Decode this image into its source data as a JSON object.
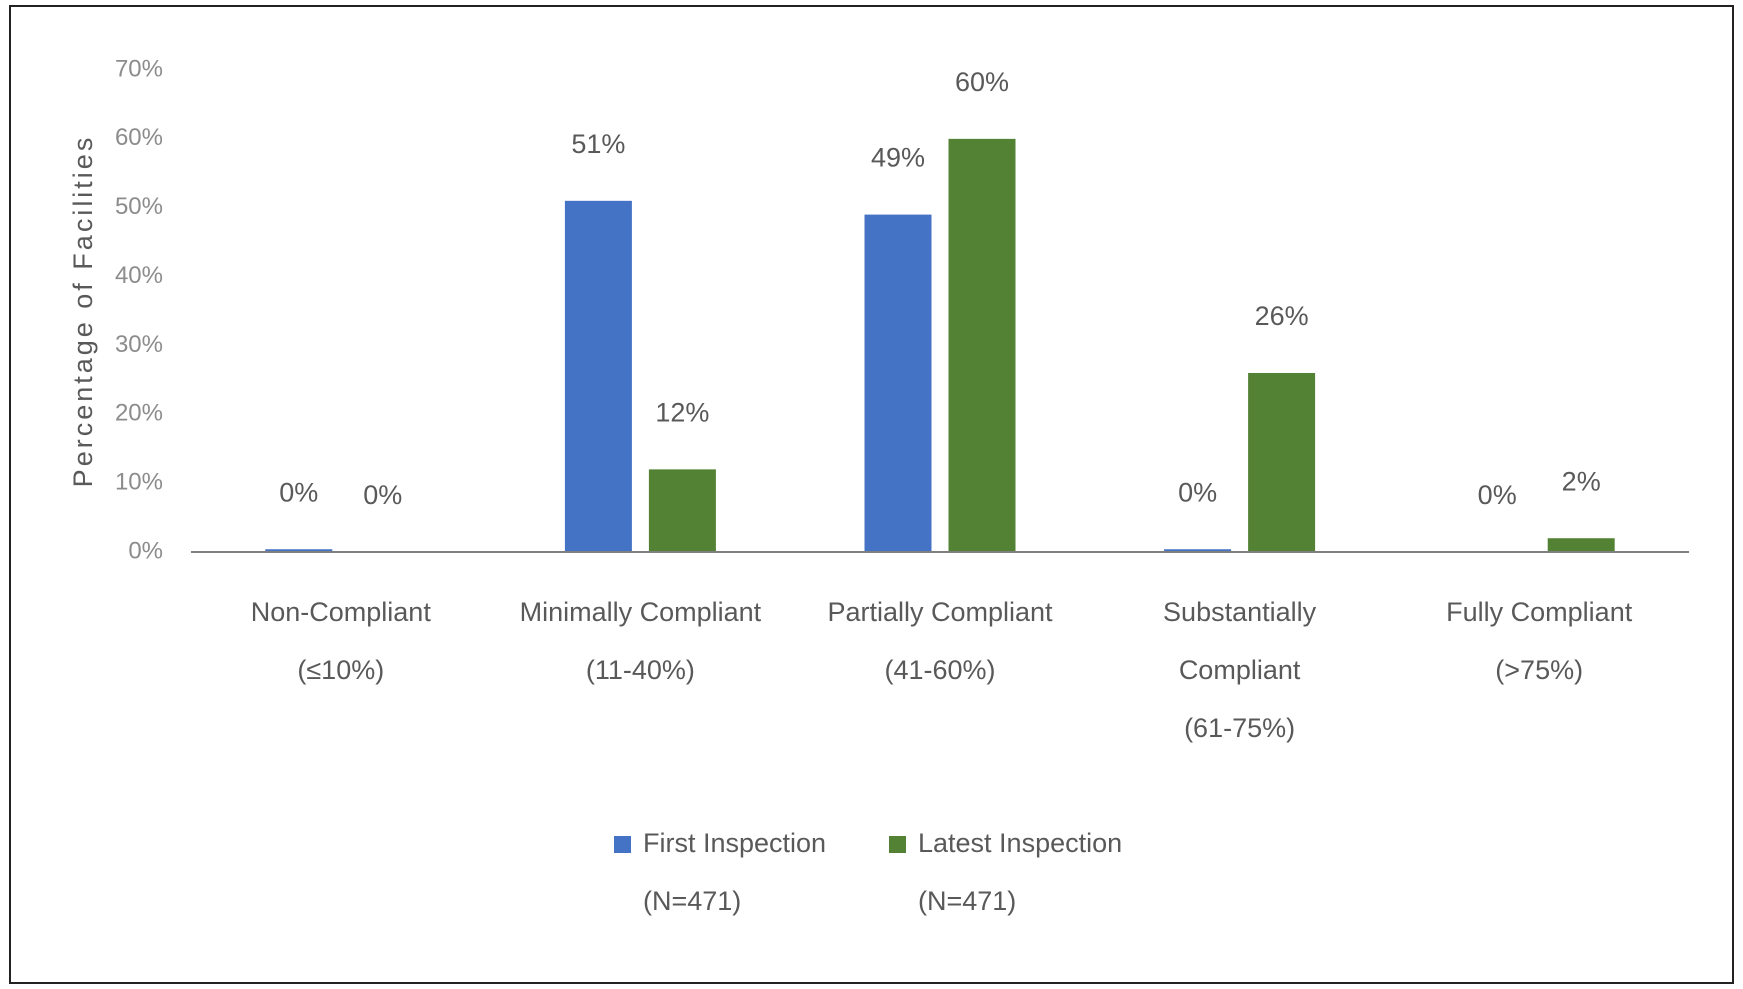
{
  "chart_data": {
    "type": "bar",
    "y_label": "Percentage of Facilities",
    "categories": [
      "Non-Compliant\n(≤10%)",
      "Minimally Compliant\n(11-40%)",
      "Partially Compliant\n(41-60%)",
      "Substantially\nCompliant\n(61-75%)",
      "Fully Compliant\n(>75%)"
    ],
    "series": [
      {
        "name": "First Inspection\n(N=471)",
        "color": "#4472c4",
        "values": [
          0.4,
          51,
          49,
          0.4,
          0
        ],
        "value_labels": [
          "0%",
          "51%",
          "49%",
          "0%",
          "0%"
        ]
      },
      {
        "name": "Latest Inspection\n(N=471)",
        "color": "#548235",
        "values": [
          0,
          12,
          60,
          26,
          2
        ],
        "value_labels": [
          "0%",
          "12%",
          "60%",
          "26%",
          "2%"
        ]
      }
    ],
    "ylim": [
      0,
      70
    ],
    "yticks": [
      {
        "value": 0,
        "label": "0%"
      },
      {
        "value": 10,
        "label": "10%"
      },
      {
        "value": 20,
        "label": "20%"
      },
      {
        "value": 30,
        "label": "30%"
      },
      {
        "value": 40,
        "label": "40%"
      },
      {
        "value": 50,
        "label": "50%"
      },
      {
        "value": 60,
        "label": "60%"
      },
      {
        "value": 70,
        "label": "70%"
      }
    ],
    "grid": false,
    "legend": "bottom"
  }
}
